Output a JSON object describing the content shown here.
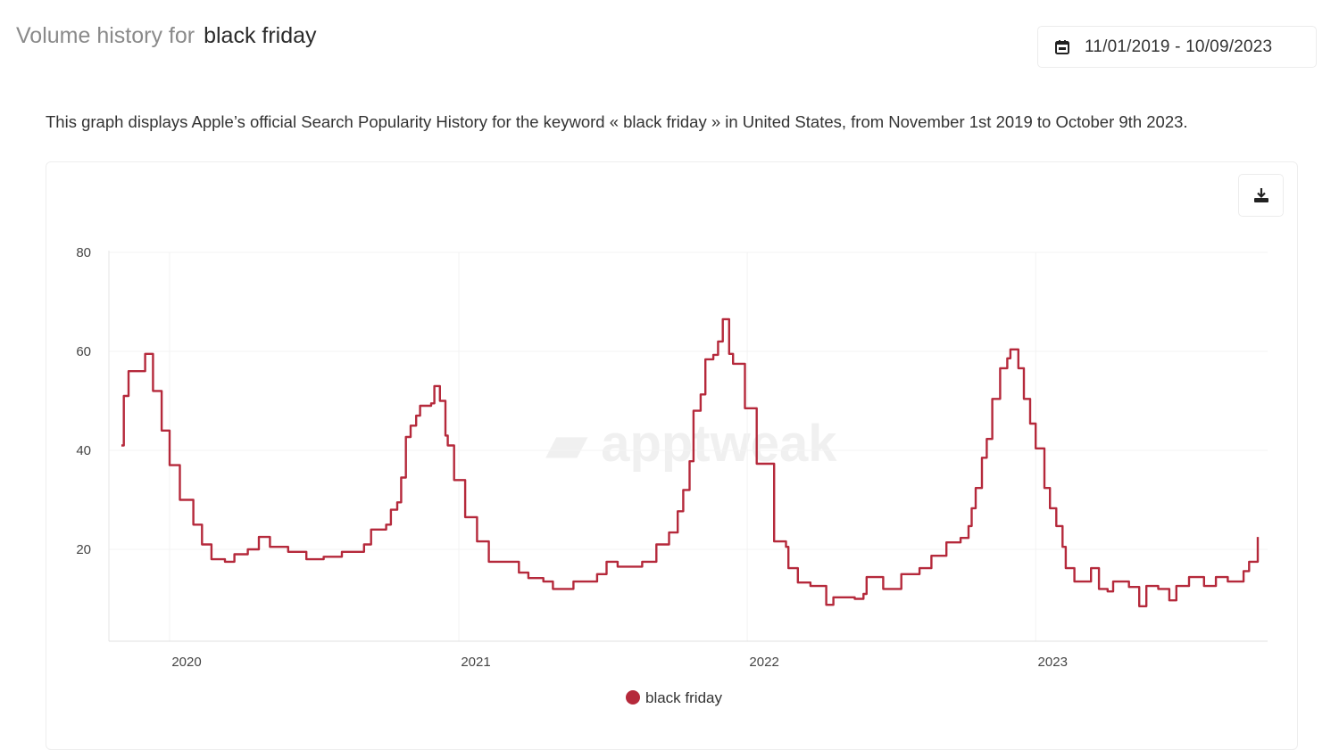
{
  "header": {
    "title_prefix": "Volume history for",
    "keyword": "black friday",
    "date_range": "11/01/2019 - 10/09/2023",
    "calendar_icon": "calendar-icon",
    "description": "This graph displays Apple’s official Search Popularity History for the keyword « black friday » in United States, from November 1st 2019 to October 9th 2023.",
    "download_icon": "download-icon"
  },
  "watermark": "apptweak",
  "chart_data": {
    "type": "line",
    "title": "",
    "xlabel": "",
    "ylabel": "",
    "ylim": [
      0,
      80
    ],
    "xlim": [
      "2019-11-01",
      "2023-10-09"
    ],
    "yticks": [
      "20",
      "40",
      "60",
      "80"
    ],
    "xticks": [
      "2020",
      "2021",
      "2022",
      "2023"
    ],
    "grid": true,
    "legend": "bottom-center",
    "series": [
      {
        "name": "black friday",
        "color": "#b5293b",
        "points": [
          [
            "2019-11-01",
            41
          ],
          [
            "2019-11-04",
            51
          ],
          [
            "2019-11-10",
            56
          ],
          [
            "2019-11-26",
            56
          ],
          [
            "2019-12-01",
            59.5
          ],
          [
            "2019-12-11",
            52
          ],
          [
            "2019-12-22",
            44
          ],
          [
            "2020-01-01",
            37
          ],
          [
            "2020-01-14",
            30
          ],
          [
            "2020-01-31",
            25
          ],
          [
            "2020-02-11",
            21
          ],
          [
            "2020-02-23",
            18
          ],
          [
            "2020-03-11",
            17.5
          ],
          [
            "2020-03-23",
            19
          ],
          [
            "2020-04-09",
            20
          ],
          [
            "2020-04-23",
            22.5
          ],
          [
            "2020-05-07",
            20.5
          ],
          [
            "2020-05-30",
            19.5
          ],
          [
            "2020-06-22",
            18
          ],
          [
            "2020-07-14",
            18.5
          ],
          [
            "2020-08-06",
            19.5
          ],
          [
            "2020-08-23",
            19.5
          ],
          [
            "2020-09-03",
            21
          ],
          [
            "2020-09-12",
            24
          ],
          [
            "2020-10-01",
            25
          ],
          [
            "2020-10-07",
            28
          ],
          [
            "2020-10-15",
            29.5
          ],
          [
            "2020-10-20",
            34.5
          ],
          [
            "2020-10-26",
            42.7
          ],
          [
            "2020-11-01",
            45
          ],
          [
            "2020-11-08",
            47
          ],
          [
            "2020-11-13",
            49
          ],
          [
            "2020-11-27",
            49.5
          ],
          [
            "2020-12-01",
            53
          ],
          [
            "2020-12-08",
            50
          ],
          [
            "2020-12-15",
            43
          ],
          [
            "2020-12-18",
            41
          ],
          [
            "2020-12-26",
            34
          ],
          [
            "2021-01-09",
            26.5
          ],
          [
            "2021-01-24",
            21.6
          ],
          [
            "2021-02-08",
            17.5
          ],
          [
            "2021-03-04",
            17.5
          ],
          [
            "2021-03-18",
            15.3
          ],
          [
            "2021-03-30",
            14.2
          ],
          [
            "2021-04-18",
            13.5
          ],
          [
            "2021-04-30",
            12
          ],
          [
            "2021-05-26",
            13.5
          ],
          [
            "2021-06-25",
            15
          ],
          [
            "2021-07-07",
            17.5
          ],
          [
            "2021-07-21",
            16.5
          ],
          [
            "2021-08-21",
            17.5
          ],
          [
            "2021-09-08",
            21
          ],
          [
            "2021-09-24",
            23.4
          ],
          [
            "2021-10-05",
            27.7
          ],
          [
            "2021-10-12",
            32
          ],
          [
            "2021-10-20",
            37.8
          ],
          [
            "2021-10-25",
            48
          ],
          [
            "2021-11-03",
            51.3
          ],
          [
            "2021-11-09",
            58.4
          ],
          [
            "2021-11-19",
            59.3
          ],
          [
            "2021-11-25",
            62
          ],
          [
            "2021-12-01",
            66.5
          ],
          [
            "2021-12-07",
            66.5
          ],
          [
            "2021-12-09",
            59.5
          ],
          [
            "2021-12-14",
            57.5
          ],
          [
            "2021-12-26",
            57.5
          ],
          [
            "2021-12-29",
            48.5
          ],
          [
            "2022-01-13",
            37.3
          ],
          [
            "2022-01-20",
            37.3
          ],
          [
            "2022-02-04",
            21.6
          ],
          [
            "2022-02-19",
            20.5
          ],
          [
            "2022-02-22",
            16.2
          ],
          [
            "2022-03-06",
            13.3
          ],
          [
            "2022-03-22",
            12.6
          ],
          [
            "2022-04-11",
            8.8
          ],
          [
            "2022-04-20",
            10.3
          ],
          [
            "2022-05-17",
            10
          ],
          [
            "2022-05-28",
            11
          ],
          [
            "2022-06-01",
            14.4
          ],
          [
            "2022-06-15",
            14.4
          ],
          [
            "2022-06-22",
            12
          ],
          [
            "2022-07-15",
            15
          ],
          [
            "2022-08-07",
            16.2
          ],
          [
            "2022-08-22",
            18.7
          ],
          [
            "2022-09-10",
            21.4
          ],
          [
            "2022-09-28",
            22.3
          ],
          [
            "2022-10-08",
            24.7
          ],
          [
            "2022-10-12",
            28.3
          ],
          [
            "2022-10-17",
            32.4
          ],
          [
            "2022-10-25",
            38.5
          ],
          [
            "2022-10-31",
            42.3
          ],
          [
            "2022-11-07",
            50.4
          ],
          [
            "2022-11-17",
            56.6
          ],
          [
            "2022-11-26",
            58.6
          ],
          [
            "2022-11-30",
            60.4
          ],
          [
            "2022-12-10",
            56.6
          ],
          [
            "2022-12-17",
            50.4
          ],
          [
            "2022-12-25",
            45.4
          ],
          [
            "2023-01-01",
            40.4
          ],
          [
            "2023-01-12",
            32.4
          ],
          [
            "2023-01-19",
            28.3
          ],
          [
            "2023-01-27",
            24.7
          ],
          [
            "2023-02-04",
            20.5
          ],
          [
            "2023-02-08",
            16.2
          ],
          [
            "2023-02-19",
            13.5
          ],
          [
            "2023-03-08",
            13.5
          ],
          [
            "2023-03-12",
            16.2
          ],
          [
            "2023-03-22",
            12
          ],
          [
            "2023-04-02",
            11.5
          ],
          [
            "2023-04-09",
            13.5
          ],
          [
            "2023-04-21",
            13.5
          ],
          [
            "2023-04-29",
            12.4
          ],
          [
            "2023-05-12",
            8.5
          ],
          [
            "2023-05-21",
            12.6
          ],
          [
            "2023-06-05",
            12
          ],
          [
            "2023-06-19",
            9.7
          ],
          [
            "2023-06-28",
            12.6
          ],
          [
            "2023-07-14",
            14.4
          ],
          [
            "2023-08-02",
            12.6
          ],
          [
            "2023-08-17",
            14.4
          ],
          [
            "2023-09-01",
            13.5
          ],
          [
            "2023-09-21",
            15.6
          ],
          [
            "2023-09-28",
            17.5
          ],
          [
            "2023-10-06",
            17.5
          ],
          [
            "2023-10-09",
            22.5
          ]
        ]
      }
    ]
  }
}
